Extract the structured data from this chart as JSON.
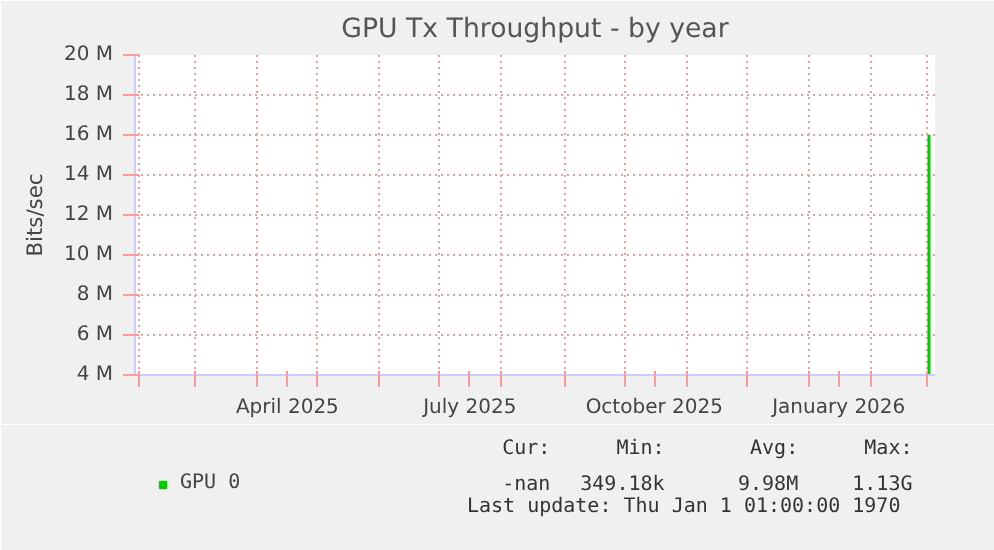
{
  "chart_data": {
    "type": "line",
    "title": "GPU Tx Throughput - by year",
    "ylabel": "Bits/sec",
    "xlim": [
      "2025-01-30",
      "2026-03-05"
    ],
    "ylim": [
      4000000,
      20000000
    ],
    "xticks": [
      {
        "value": "2025-02-01",
        "label": null
      },
      {
        "value": "2025-03-01",
        "label": null
      },
      {
        "value": "2025-04-01",
        "label": null
      },
      {
        "value": "2025-04-16",
        "label": "April 2025"
      },
      {
        "value": "2025-05-01",
        "label": null
      },
      {
        "value": "2025-06-01",
        "label": null
      },
      {
        "value": "2025-07-01",
        "label": null
      },
      {
        "value": "2025-07-16",
        "label": "July 2025"
      },
      {
        "value": "2025-08-01",
        "label": null
      },
      {
        "value": "2025-09-01",
        "label": null
      },
      {
        "value": "2025-10-01",
        "label": null
      },
      {
        "value": "2025-10-16",
        "label": "October 2025"
      },
      {
        "value": "2025-11-01",
        "label": null
      },
      {
        "value": "2025-12-01",
        "label": null
      },
      {
        "value": "2026-01-01",
        "label": null
      },
      {
        "value": "2026-01-16",
        "label": "January 2026"
      },
      {
        "value": "2026-02-01",
        "label": null
      },
      {
        "value": "2026-03-01",
        "label": null
      }
    ],
    "yticks": [
      {
        "value": 4000000,
        "label": "4 M"
      },
      {
        "value": 6000000,
        "label": "6 M"
      },
      {
        "value": 8000000,
        "label": "8 M"
      },
      {
        "value": 10000000,
        "label": "10 M"
      },
      {
        "value": 12000000,
        "label": "12 M"
      },
      {
        "value": 14000000,
        "label": "14 M"
      },
      {
        "value": 16000000,
        "label": "16 M"
      },
      {
        "value": 18000000,
        "label": "18 M"
      },
      {
        "value": 20000000,
        "label": "20 M"
      }
    ],
    "grid": true,
    "legend": "bottom",
    "series": [
      {
        "name": "GPU 0",
        "color": "#00cc00",
        "x": [
          "2026-03-02",
          "2026-03-02"
        ],
        "values": [
          4000000,
          16000000
        ]
      }
    ],
    "annotations": [
      "Cur:",
      "Min:",
      "Avg:",
      "Max:",
      "-nan",
      "349.18k",
      "9.98M",
      "1.13G",
      "Last update: Thu Jan  1 01:00:00 1970"
    ]
  }
}
